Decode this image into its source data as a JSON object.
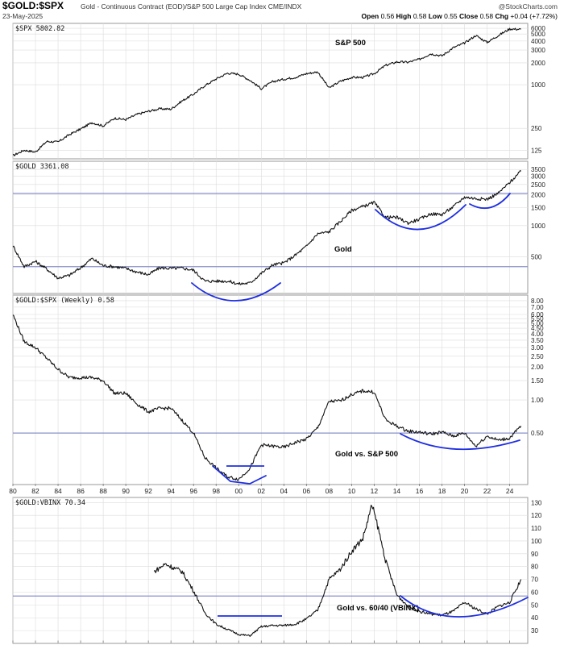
{
  "header": {
    "symbol": "$GOLD:$SPX",
    "description": "Gold - Continuous Contract (EOD)/S&P 500 Large Cap Index  CME/INDX",
    "watermark": "@StockCharts.com",
    "date": "23-May-2025",
    "quote": {
      "open_label": "Open",
      "open": "0.56",
      "high_label": "High",
      "high": "0.58",
      "low_label": "Low",
      "low": "0.55",
      "close_label": "Close",
      "close": "0.58",
      "chg_label": "Chg",
      "chg": "+0.04 (+7.72%)"
    }
  },
  "colors": {
    "price_line": "#111111",
    "highlight_curves": "#1f2fe0",
    "reference_lines": "#8a90c8",
    "grid": "#dcdcdc"
  },
  "chart_data": [
    {
      "type": "line",
      "panel_label": "$SPX 5802.82",
      "annotation": "S&P 500",
      "scale": "log",
      "ylim": [
        95,
        7000
      ],
      "y_ticks": [
        "6000",
        "5000",
        "4000",
        "3000",
        "2000",
        "1000",
        "250",
        "125"
      ],
      "y_tick_values": [
        6000,
        5000,
        4000,
        3000,
        2000,
        1000,
        250,
        125
      ],
      "series": [
        {
          "points": [
            [
              1980,
              105
            ],
            [
              1981,
              125
            ],
            [
              1982,
              118
            ],
            [
              1983,
              165
            ],
            [
              1984,
              162
            ],
            [
              1985,
              205
            ],
            [
              1986,
              245
            ],
            [
              1987,
              300
            ],
            [
              1988,
              270
            ],
            [
              1989,
              345
            ],
            [
              1990,
              330
            ],
            [
              1991,
              390
            ],
            [
              1992,
              430
            ],
            [
              1993,
              465
            ],
            [
              1994,
              460
            ],
            [
              1995,
              600
            ],
            [
              1996,
              740
            ],
            [
              1997,
              970
            ],
            [
              1998,
              1200
            ],
            [
              1999,
              1440
            ],
            [
              2000,
              1400
            ],
            [
              2001,
              1150
            ],
            [
              2002,
              880
            ],
            [
              2003,
              1100
            ],
            [
              2004,
              1190
            ],
            [
              2005,
              1260
            ],
            [
              2006,
              1420
            ],
            [
              2007,
              1500
            ],
            [
              2008,
              900
            ],
            [
              2009,
              1115
            ],
            [
              2010,
              1260
            ],
            [
              2011,
              1260
            ],
            [
              2012,
              1420
            ],
            [
              2013,
              1840
            ],
            [
              2014,
              2060
            ],
            [
              2015,
              2040
            ],
            [
              2016,
              2240
            ],
            [
              2017,
              2670
            ],
            [
              2018,
              2500
            ],
            [
              2019,
              3230
            ],
            [
              2020,
              3750
            ],
            [
              2021,
              4770
            ],
            [
              2022,
              3840
            ],
            [
              2023,
              4770
            ],
            [
              2024,
              5880
            ],
            [
              2025,
              5800
            ]
          ]
        }
      ]
    },
    {
      "type": "line",
      "panel_label": "$GOLD 3361.08",
      "annotation": "Gold",
      "scale": "log",
      "ylim": [
        220,
        4200
      ],
      "y_ticks": [
        "3500",
        "3000",
        "2500",
        "2000",
        "1500",
        "1000",
        "500"
      ],
      "y_tick_values": [
        3500,
        3000,
        2500,
        2000,
        1500,
        1000,
        500
      ],
      "reference_lines": [
        2050,
        400
      ],
      "series": [
        {
          "points": [
            [
              1980,
              640
            ],
            [
              1981,
              400
            ],
            [
              1982,
              450
            ],
            [
              1983,
              380
            ],
            [
              1984,
              310
            ],
            [
              1985,
              330
            ],
            [
              1986,
              390
            ],
            [
              1987,
              480
            ],
            [
              1988,
              410
            ],
            [
              1989,
              400
            ],
            [
              1990,
              385
            ],
            [
              1991,
              355
            ],
            [
              1992,
              335
            ],
            [
              1993,
              390
            ],
            [
              1994,
              385
            ],
            [
              1995,
              387
            ],
            [
              1996,
              370
            ],
            [
              1997,
              290
            ],
            [
              1998,
              290
            ],
            [
              1999,
              290
            ],
            [
              2000,
              272
            ],
            [
              2001,
              278
            ],
            [
              2002,
              345
            ],
            [
              2003,
              415
            ],
            [
              2004,
              435
            ],
            [
              2005,
              515
            ],
            [
              2006,
              630
            ],
            [
              2007,
              835
            ],
            [
              2008,
              870
            ],
            [
              2009,
              1095
            ],
            [
              2010,
              1405
            ],
            [
              2011,
              1530
            ],
            [
              2012,
              1675
            ],
            [
              2013,
              1205
            ],
            [
              2014,
              1200
            ],
            [
              2015,
              1060
            ],
            [
              2016,
              1150
            ],
            [
              2017,
              1300
            ],
            [
              2018,
              1280
            ],
            [
              2019,
              1520
            ],
            [
              2020,
              1890
            ],
            [
              2021,
              1830
            ],
            [
              2022,
              1800
            ],
            [
              2023,
              2060
            ],
            [
              2024,
              2620
            ],
            [
              2025,
              3360
            ]
          ]
        }
      ]
    },
    {
      "type": "line",
      "panel_label": "$GOLD:$SPX (Weekly) 0.58",
      "annotation": "Gold vs. S&P 500",
      "scale": "log",
      "ylim": [
        0.17,
        9.0
      ],
      "y_ticks": [
        "8.00",
        "7.00",
        "6.00",
        "5.50",
        "5.00",
        "4.50",
        "4.00",
        "3.50",
        "3.00",
        "2.50",
        "2.00",
        "1.50",
        "1.00",
        "0.50"
      ],
      "y_tick_values": [
        8.0,
        7.0,
        6.0,
        5.5,
        5.0,
        4.5,
        4.0,
        3.5,
        3.0,
        2.5,
        2.0,
        1.5,
        1.0,
        0.5
      ],
      "reference_lines": [
        0.5
      ],
      "series": [
        {
          "points": [
            [
              1980,
              6.0
            ],
            [
              1981,
              3.4
            ],
            [
              1982,
              3.0
            ],
            [
              1983,
              2.4
            ],
            [
              1984,
              1.9
            ],
            [
              1985,
              1.6
            ],
            [
              1986,
              1.6
            ],
            [
              1987,
              1.6
            ],
            [
              1988,
              1.5
            ],
            [
              1989,
              1.15
            ],
            [
              1990,
              1.15
            ],
            [
              1991,
              0.92
            ],
            [
              1992,
              0.78
            ],
            [
              1993,
              0.84
            ],
            [
              1994,
              0.84
            ],
            [
              1995,
              0.65
            ],
            [
              1996,
              0.5
            ],
            [
              1997,
              0.3
            ],
            [
              1998,
              0.24
            ],
            [
              1999,
              0.2
            ],
            [
              2000,
              0.19
            ],
            [
              2001,
              0.24
            ],
            [
              2002,
              0.39
            ],
            [
              2003,
              0.38
            ],
            [
              2004,
              0.37
            ],
            [
              2005,
              0.41
            ],
            [
              2006,
              0.44
            ],
            [
              2007,
              0.56
            ],
            [
              2008,
              0.97
            ],
            [
              2009,
              0.98
            ],
            [
              2010,
              1.12
            ],
            [
              2011,
              1.21
            ],
            [
              2012,
              1.18
            ],
            [
              2013,
              0.66
            ],
            [
              2014,
              0.58
            ],
            [
              2015,
              0.52
            ],
            [
              2016,
              0.51
            ],
            [
              2017,
              0.49
            ],
            [
              2018,
              0.51
            ],
            [
              2019,
              0.47
            ],
            [
              2020,
              0.5
            ],
            [
              2021,
              0.38
            ],
            [
              2022,
              0.47
            ],
            [
              2023,
              0.43
            ],
            [
              2024,
              0.45
            ],
            [
              2025,
              0.58
            ]
          ]
        }
      ]
    },
    {
      "type": "line",
      "panel_label": "$GOLD:VBINX 70.34",
      "annotation": "Gold vs. 60/40 (VBINX)",
      "scale": "linear",
      "ylim": [
        20,
        134
      ],
      "y_ticks": [
        "130",
        "120",
        "110",
        "100",
        "90",
        "80",
        "70",
        "60",
        "50",
        "40",
        "30"
      ],
      "y_tick_values": [
        130,
        120,
        110,
        100,
        90,
        80,
        70,
        60,
        50,
        40,
        30
      ],
      "reference_lines": [
        57
      ],
      "x_ticks": [
        "80",
        "82",
        "84",
        "86",
        "88",
        "90",
        "92",
        "94",
        "96",
        "98",
        "00",
        "02",
        "04",
        "06",
        "08",
        "10",
        "12",
        "14",
        "16",
        "18",
        "20",
        "22",
        "24"
      ],
      "x_tick_years": [
        1980,
        1982,
        1984,
        1986,
        1988,
        1990,
        1992,
        1994,
        1996,
        1998,
        2000,
        2002,
        2004,
        2006,
        2008,
        2010,
        2012,
        2014,
        2016,
        2018,
        2020,
        2022,
        2024
      ],
      "series": [
        {
          "points": [
            [
              1992.5,
              76
            ],
            [
              1993,
              79
            ],
            [
              1993.5,
              82
            ],
            [
              1994,
              80
            ],
            [
              1995,
              76
            ],
            [
              1996,
              61
            ],
            [
              1997,
              44
            ],
            [
              1998,
              35
            ],
            [
              1999,
              31
            ],
            [
              2000,
              27
            ],
            [
              2001,
              26
            ],
            [
              2002,
              33
            ],
            [
              2003,
              34
            ],
            [
              2004,
              34
            ],
            [
              2005,
              35
            ],
            [
              2006,
              39
            ],
            [
              2007,
              46
            ],
            [
              2008,
              70
            ],
            [
              2009,
              78
            ],
            [
              2010,
              92
            ],
            [
              2011,
              102
            ],
            [
              2011.8,
              128
            ],
            [
              2012.3,
              112
            ],
            [
              2013,
              85
            ],
            [
              2014,
              58
            ],
            [
              2015,
              49
            ],
            [
              2016,
              45
            ],
            [
              2017,
              43
            ],
            [
              2018,
              42
            ],
            [
              2019,
              45
            ],
            [
              2020,
              52
            ],
            [
              2021,
              47
            ],
            [
              2022,
              43
            ],
            [
              2023,
              49
            ],
            [
              2024,
              52
            ],
            [
              2025,
              70
            ]
          ]
        }
      ]
    }
  ]
}
